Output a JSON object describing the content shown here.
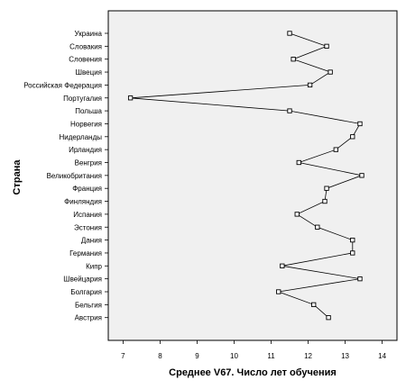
{
  "chart_data": {
    "type": "line",
    "orientation": "horizontal",
    "xlabel": "Среднее V67. Число лет обучения",
    "ylabel": "Страна",
    "xlim": [
      6.6,
      14.4
    ],
    "xticks": [
      7,
      8,
      9,
      10,
      11,
      12,
      13,
      14
    ],
    "grid": false,
    "categories": [
      "Украина",
      "Словакия",
      "Словения",
      "Швеция",
      "Российская Федерация",
      "Португалия",
      "Польша",
      "Норвегия",
      "Нидерланды",
      "Ирландия",
      "Венгрия",
      "Великобритания",
      "Франция",
      "Финляндия",
      "Испания",
      "Эстония",
      "Дания",
      "Германия",
      "Кипр",
      "Швейцария",
      "Болгария",
      "Бельгия",
      "Австрия"
    ],
    "values": [
      11.5,
      12.5,
      11.6,
      12.6,
      12.05,
      7.2,
      11.5,
      13.4,
      13.2,
      12.75,
      11.75,
      13.45,
      12.5,
      12.45,
      11.7,
      12.25,
      13.2,
      13.2,
      11.3,
      13.4,
      11.2,
      12.15,
      12.55
    ]
  }
}
